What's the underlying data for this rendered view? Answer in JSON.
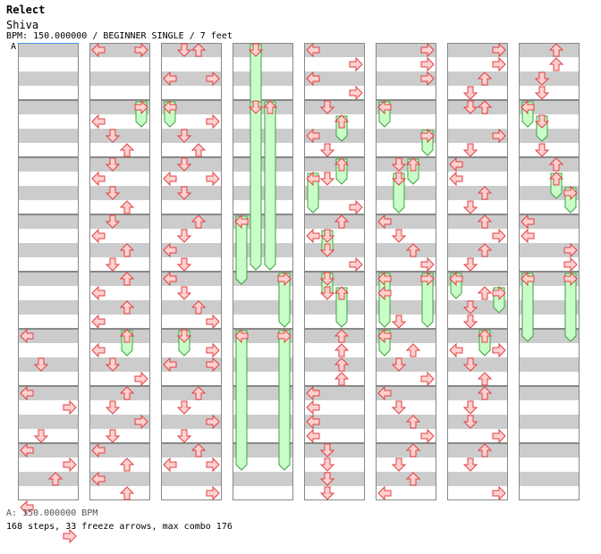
{
  "header": {
    "title": "Relect",
    "artist": "Shiva",
    "info": "BPM: 150.000000 / BEGINNER SINGLE / 7 feet",
    "marker": "A"
  },
  "footer": {
    "bpm_line": "A: 150.000000 BPM",
    "stats_line": "168 steps, 33 freeze arrows, max combo 176"
  },
  "colors": {
    "arrow_fill": "#ffd0d0",
    "arrow_stroke": "#e04040",
    "freeze_fill": "#c8ffc8",
    "freeze_stroke": "#40a040",
    "stripe": "#cccccc"
  },
  "chart_data": {
    "type": "step-chart",
    "lanes": [
      "left",
      "down",
      "up",
      "right"
    ],
    "columns": 8,
    "measures_per_column": 8,
    "rows_per_measure": 8,
    "columns_data": [
      {
        "arrows": [
          [
            5,
            0,
            0
          ],
          [
            5,
            2,
            1
          ],
          [
            5,
            4,
            0
          ],
          [
            6,
            1,
            3
          ],
          [
            6,
            3,
            1
          ],
          [
            6,
            5,
            3
          ],
          [
            7,
            0,
            0
          ],
          [
            7,
            2,
            2
          ],
          [
            7,
            4,
            0
          ],
          [
            7,
            6,
            3
          ]
        ],
        "freezes": []
      },
      {
        "arrows": [
          [
            0,
            0,
            0
          ],
          [
            0,
            0,
            3
          ],
          [
            1,
            1,
            0
          ],
          [
            1,
            2,
            1
          ],
          [
            1,
            3,
            2
          ],
          [
            2,
            0,
            1
          ],
          [
            2,
            1,
            0
          ],
          [
            2,
            2,
            1
          ],
          [
            2,
            3,
            2
          ],
          [
            3,
            0,
            1
          ],
          [
            3,
            1,
            0
          ],
          [
            3,
            2,
            2
          ],
          [
            3,
            3,
            1
          ],
          [
            4,
            0,
            2
          ],
          [
            4,
            1,
            0
          ],
          [
            4,
            2,
            2
          ],
          [
            4,
            3,
            0
          ],
          [
            5,
            0,
            2
          ],
          [
            5,
            1,
            0
          ],
          [
            5,
            2,
            1
          ],
          [
            5,
            3,
            3
          ],
          [
            6,
            0,
            2
          ],
          [
            6,
            1,
            1
          ],
          [
            6,
            2,
            3
          ],
          [
            6,
            3,
            1
          ],
          [
            7,
            0,
            0
          ],
          [
            7,
            1,
            2
          ],
          [
            7,
            2,
            0
          ],
          [
            7,
            3,
            2
          ]
        ],
        "freezes": [
          [
            1,
            0,
            3,
            1,
            1
          ],
          [
            5,
            0,
            2,
            5,
            1
          ]
        ]
      },
      {
        "arrows": [
          [
            0,
            0,
            1
          ],
          [
            0,
            0,
            2
          ],
          [
            0,
            2,
            0
          ],
          [
            0,
            2,
            3
          ],
          [
            1,
            1,
            3
          ],
          [
            1,
            2,
            1
          ],
          [
            1,
            3,
            2
          ],
          [
            2,
            0,
            1
          ],
          [
            2,
            1,
            0
          ],
          [
            2,
            1,
            3
          ],
          [
            2,
            2,
            1
          ],
          [
            3,
            0,
            2
          ],
          [
            3,
            1,
            1
          ],
          [
            3,
            2,
            0
          ],
          [
            3,
            3,
            1
          ],
          [
            4,
            0,
            0
          ],
          [
            4,
            1,
            1
          ],
          [
            4,
            2,
            2
          ],
          [
            4,
            3,
            3
          ],
          [
            5,
            1,
            3
          ],
          [
            5,
            2,
            0
          ],
          [
            5,
            2,
            3
          ],
          [
            6,
            0,
            2
          ],
          [
            6,
            1,
            1
          ],
          [
            6,
            2,
            3
          ],
          [
            6,
            3,
            1
          ],
          [
            7,
            0,
            2
          ],
          [
            7,
            1,
            0
          ],
          [
            7,
            1,
            3
          ],
          [
            7,
            3,
            3
          ]
        ],
        "freezes": [
          [
            1,
            0,
            0,
            1,
            1
          ],
          [
            5,
            0,
            1,
            5,
            1
          ]
        ]
      },
      {
        "arrows": [],
        "freezes": [
          [
            0,
            0,
            1,
            1,
            2
          ],
          [
            1,
            0,
            1,
            2,
            7
          ],
          [
            1,
            0,
            2,
            2,
            7
          ],
          [
            3,
            0,
            0,
            3,
            4
          ],
          [
            4,
            0,
            3,
            4,
            3
          ],
          [
            5,
            0,
            0,
            7,
            1
          ],
          [
            5,
            0,
            3,
            7,
            1
          ]
        ]
      },
      {
        "arrows": [
          [
            0,
            0,
            0
          ],
          [
            0,
            1,
            3
          ],
          [
            0,
            2,
            0
          ],
          [
            0,
            3,
            3
          ],
          [
            1,
            0,
            1
          ],
          [
            1,
            2,
            0
          ],
          [
            1,
            3,
            1
          ],
          [
            2,
            1,
            1
          ],
          [
            2,
            3,
            3
          ],
          [
            3,
            0,
            2
          ],
          [
            3,
            1,
            0
          ],
          [
            3,
            2,
            1
          ],
          [
            3,
            3,
            3
          ],
          [
            4,
            1,
            1
          ],
          [
            5,
            0,
            2
          ],
          [
            5,
            1,
            2
          ],
          [
            5,
            2,
            2
          ],
          [
            5,
            3,
            2
          ],
          [
            6,
            0,
            0
          ],
          [
            6,
            1,
            0
          ],
          [
            6,
            2,
            0
          ],
          [
            6,
            3,
            0
          ],
          [
            7,
            0,
            1
          ],
          [
            7,
            1,
            1
          ],
          [
            7,
            2,
            1
          ],
          [
            7,
            3,
            1
          ]
        ],
        "freezes": [
          [
            1,
            1,
            2,
            1,
            2
          ],
          [
            2,
            1,
            0,
            2,
            3
          ],
          [
            2,
            0,
            2,
            2,
            1
          ],
          [
            3,
            1,
            1,
            3,
            2
          ],
          [
            4,
            0,
            1,
            4,
            1
          ],
          [
            4,
            1,
            2,
            4,
            3
          ]
        ]
      },
      {
        "arrows": [
          [
            0,
            0,
            3
          ],
          [
            0,
            1,
            3
          ],
          [
            0,
            2,
            3
          ],
          [
            1,
            2,
            3
          ],
          [
            2,
            0,
            1
          ],
          [
            3,
            0,
            0
          ],
          [
            3,
            1,
            1
          ],
          [
            3,
            2,
            2
          ],
          [
            3,
            3,
            3
          ],
          [
            4,
            1,
            0
          ],
          [
            4,
            3,
            1
          ],
          [
            5,
            0,
            0
          ],
          [
            5,
            1,
            2
          ],
          [
            5,
            2,
            1
          ],
          [
            5,
            3,
            3
          ],
          [
            6,
            0,
            0
          ],
          [
            6,
            1,
            1
          ],
          [
            6,
            2,
            2
          ],
          [
            6,
            3,
            3
          ],
          [
            7,
            0,
            2
          ],
          [
            7,
            1,
            1
          ],
          [
            7,
            2,
            2
          ],
          [
            7,
            3,
            0
          ]
        ],
        "freezes": [
          [
            1,
            0,
            0,
            1,
            1
          ],
          [
            1,
            2,
            3,
            1,
            3
          ],
          [
            2,
            0,
            2,
            2,
            1
          ],
          [
            2,
            1,
            1,
            2,
            3
          ],
          [
            4,
            0,
            0,
            4,
            3
          ],
          [
            4,
            0,
            3,
            4,
            3
          ],
          [
            5,
            0,
            0,
            5,
            1
          ]
        ]
      },
      {
        "arrows": [
          [
            0,
            0,
            3
          ],
          [
            0,
            1,
            3
          ],
          [
            0,
            2,
            2
          ],
          [
            0,
            3,
            1
          ],
          [
            1,
            0,
            1
          ],
          [
            1,
            0,
            2
          ],
          [
            1,
            2,
            3
          ],
          [
            1,
            3,
            1
          ],
          [
            2,
            0,
            0
          ],
          [
            2,
            1,
            0
          ],
          [
            2,
            2,
            2
          ],
          [
            2,
            3,
            1
          ],
          [
            3,
            0,
            2
          ],
          [
            3,
            1,
            3
          ],
          [
            3,
            2,
            2
          ],
          [
            3,
            3,
            1
          ],
          [
            4,
            1,
            2
          ],
          [
            4,
            2,
            1
          ],
          [
            4,
            3,
            1
          ],
          [
            5,
            1,
            0
          ],
          [
            5,
            1,
            3
          ],
          [
            5,
            2,
            1
          ],
          [
            5,
            3,
            2
          ],
          [
            6,
            0,
            2
          ],
          [
            6,
            1,
            1
          ],
          [
            6,
            2,
            1
          ],
          [
            6,
            3,
            3
          ],
          [
            7,
            0,
            2
          ],
          [
            7,
            1,
            1
          ],
          [
            7,
            3,
            3
          ]
        ],
        "freezes": [
          [
            4,
            0,
            0,
            4,
            1
          ],
          [
            4,
            1,
            3,
            4,
            2
          ],
          [
            5,
            0,
            2,
            5,
            1
          ]
        ]
      },
      {
        "arrows": [
          [
            0,
            0,
            2
          ],
          [
            0,
            1,
            2
          ],
          [
            0,
            2,
            1
          ],
          [
            0,
            3,
            1
          ],
          [
            1,
            3,
            1
          ],
          [
            2,
            0,
            2
          ],
          [
            3,
            0,
            0
          ],
          [
            3,
            1,
            0
          ],
          [
            3,
            2,
            3
          ],
          [
            3,
            3,
            3
          ]
        ],
        "freezes": [
          [
            1,
            0,
            0,
            1,
            1
          ],
          [
            1,
            1,
            1,
            1,
            2
          ],
          [
            2,
            1,
            2,
            2,
            2
          ],
          [
            2,
            2,
            3,
            2,
            3
          ],
          [
            4,
            0,
            0,
            5,
            0
          ],
          [
            4,
            0,
            3,
            5,
            0
          ]
        ]
      }
    ]
  }
}
